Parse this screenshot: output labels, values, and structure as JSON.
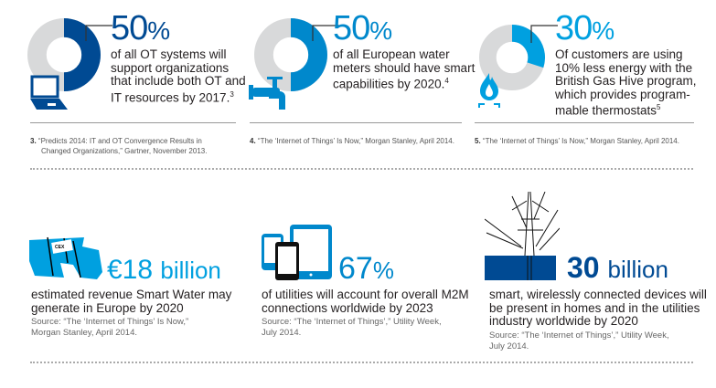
{
  "colors": {
    "dark_blue": "#004a93",
    "mid_blue": "#0088cc",
    "light_blue": "#00a0e0",
    "gray": "#d8d9da"
  },
  "top": [
    {
      "value": "50",
      "unit": "%",
      "percent": 50,
      "icon": "laptop-icon",
      "lines": [
        "of all OT systems will",
        "support organizations",
        "that include both OT and",
        "IT resources by 2017."
      ],
      "sup": "3",
      "footnote_num": "3.",
      "footnote": [
        "“Predicts 2014: IT and OT Convergence Results in",
        "Changed Organizations,” Gartner, November 2013."
      ]
    },
    {
      "value": "50",
      "unit": "%",
      "percent": 50,
      "icon": "water-tap-icon",
      "lines": [
        "of all European water",
        "meters should have smart",
        "capabilities by 2020."
      ],
      "sup": "4",
      "footnote_num": "4.",
      "footnote": [
        "“The ‘Internet of Things’ Is Now,” Morgan Stanley, April 2014."
      ]
    },
    {
      "value": "30",
      "unit": "%",
      "percent": 30,
      "icon": "gas-flame-icon",
      "lines": [
        "Of customers are using",
        "10% less energy with the",
        "British Gas Hive program,",
        "which provides program-",
        "mable thermostats"
      ],
      "sup": "5",
      "footnote_num": "5.",
      "footnote": [
        "“The ‘Internet of Things’ Is Now,” Morgan Stanley, April 2014."
      ]
    }
  ],
  "bottom": [
    {
      "value": "€18",
      "unit": "billion",
      "icon": "water-pipe-icon",
      "lines": [
        "estimated revenue Smart Water may",
        "generate in Europe by 2020"
      ],
      "source": [
        "Source: “The ‘Internet of Things’ Is Now,”",
        "Morgan Stanley, April 2014."
      ]
    },
    {
      "value": "67",
      "unit": "%",
      "icon": "devices-icon",
      "lines": [
        "of utilities will account for overall M2M",
        "connections worldwide by 2023"
      ],
      "source": [
        "Source: “The ‘Internet of Things’,” Utility Week,",
        "July 2014."
      ]
    },
    {
      "value": "30",
      "unit": "billion",
      "icon": "power-pylon-icon",
      "lines": [
        "smart, wirelessly connected devices will",
        "be present in homes and in the utilities",
        "industry worldwide by 2020"
      ],
      "source": [
        "Source: “The ‘Internet of Things’,” Utility Week,",
        "July 2014."
      ]
    }
  ]
}
